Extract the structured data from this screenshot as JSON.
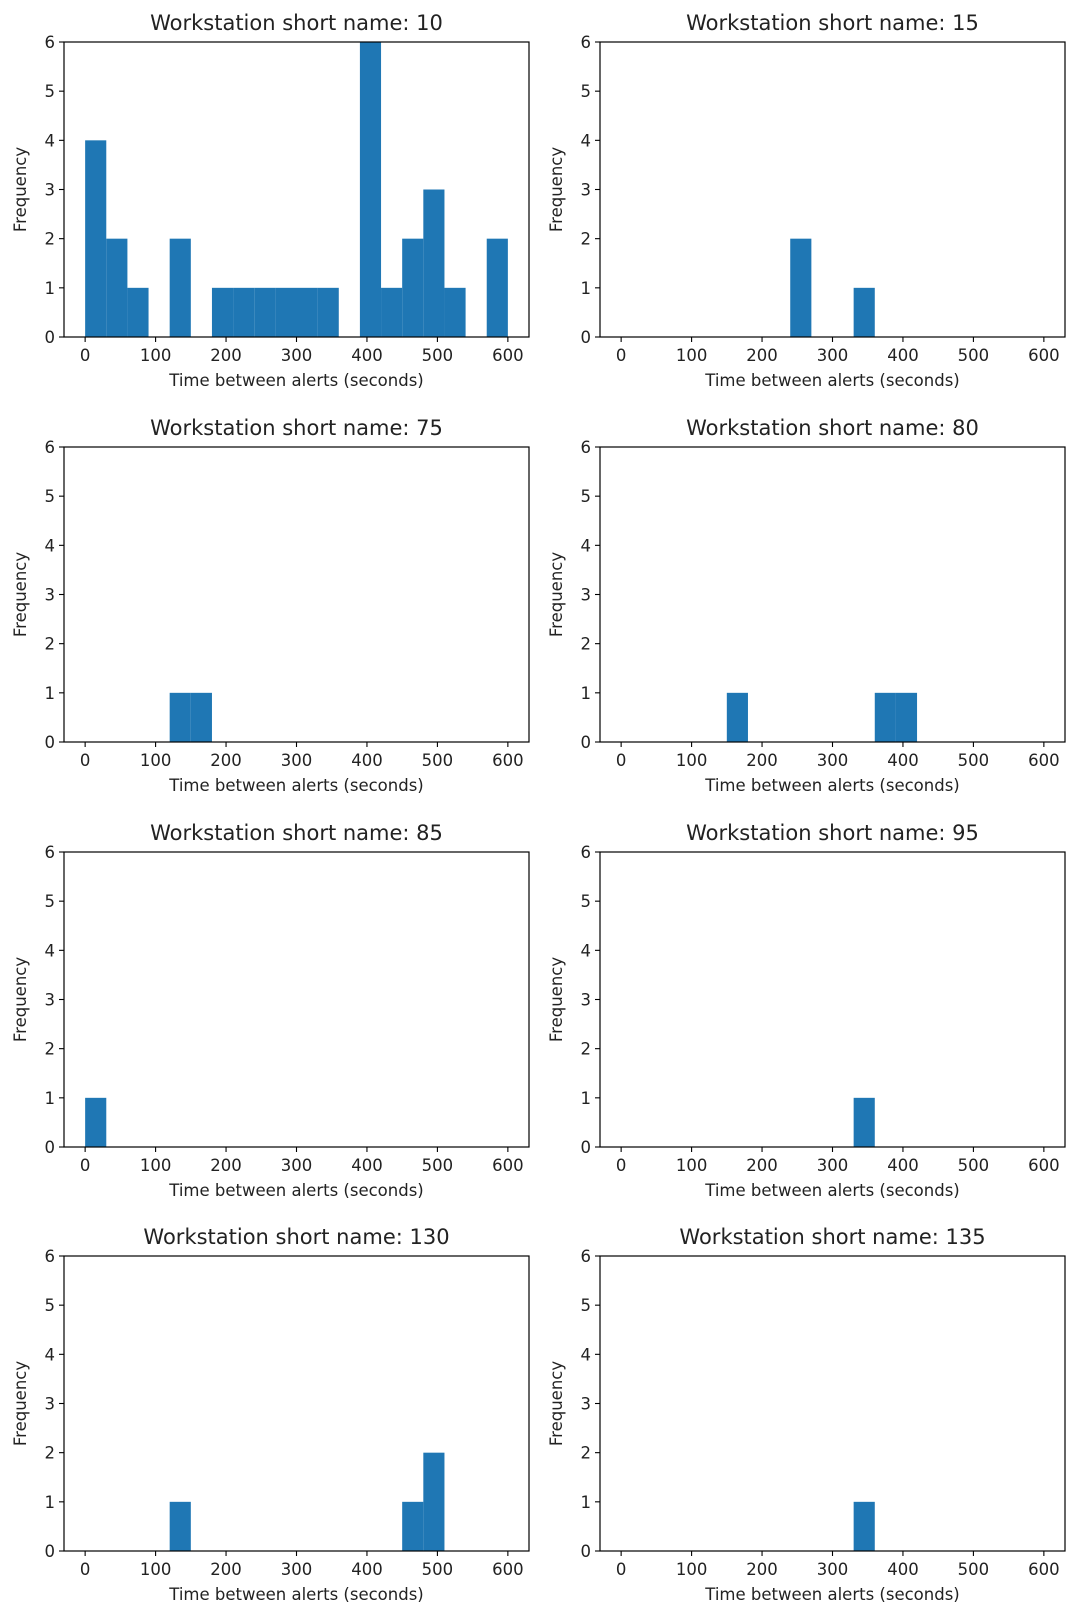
{
  "chart_data": [
    {
      "type": "bar",
      "title": "Workstation short name: 10",
      "xlabel": "Time between alerts (seconds)",
      "ylabel": "Frequency",
      "xlim": [
        -30,
        630
      ],
      "ylim": [
        0,
        6
      ],
      "xticks": [
        0,
        100,
        200,
        300,
        400,
        500,
        600
      ],
      "yticks": [
        0,
        1,
        2,
        3,
        4,
        5,
        6
      ],
      "bin_width": 30,
      "bins": [
        {
          "x": 0,
          "count": 4
        },
        {
          "x": 30,
          "count": 2
        },
        {
          "x": 60,
          "count": 1
        },
        {
          "x": 120,
          "count": 2
        },
        {
          "x": 180,
          "count": 1
        },
        {
          "x": 210,
          "count": 1
        },
        {
          "x": 240,
          "count": 1
        },
        {
          "x": 270,
          "count": 1
        },
        {
          "x": 300,
          "count": 1
        },
        {
          "x": 330,
          "count": 1
        },
        {
          "x": 390,
          "count": 6
        },
        {
          "x": 420,
          "count": 1
        },
        {
          "x": 450,
          "count": 2
        },
        {
          "x": 480,
          "count": 3
        },
        {
          "x": 510,
          "count": 1
        },
        {
          "x": 570,
          "count": 2
        }
      ],
      "grid": false,
      "color": "#1f77b4"
    },
    {
      "type": "bar",
      "title": "Workstation short name: 15",
      "xlabel": "Time between alerts (seconds)",
      "ylabel": "Frequency",
      "xlim": [
        -30,
        630
      ],
      "ylim": [
        0,
        6
      ],
      "xticks": [
        0,
        100,
        200,
        300,
        400,
        500,
        600
      ],
      "yticks": [
        0,
        1,
        2,
        3,
        4,
        5,
        6
      ],
      "bin_width": 30,
      "bins": [
        {
          "x": 240,
          "count": 2
        },
        {
          "x": 330,
          "count": 1
        }
      ],
      "grid": false,
      "color": "#1f77b4"
    },
    {
      "type": "bar",
      "title": "Workstation short name: 75",
      "xlabel": "Time between alerts (seconds)",
      "ylabel": "Frequency",
      "xlim": [
        -30,
        630
      ],
      "ylim": [
        0,
        6
      ],
      "xticks": [
        0,
        100,
        200,
        300,
        400,
        500,
        600
      ],
      "yticks": [
        0,
        1,
        2,
        3,
        4,
        5,
        6
      ],
      "bin_width": 30,
      "bins": [
        {
          "x": 120,
          "count": 1
        },
        {
          "x": 150,
          "count": 1
        }
      ],
      "grid": false,
      "color": "#1f77b4"
    },
    {
      "type": "bar",
      "title": "Workstation short name: 80",
      "xlabel": "Time between alerts (seconds)",
      "ylabel": "Frequency",
      "xlim": [
        -30,
        630
      ],
      "ylim": [
        0,
        6
      ],
      "xticks": [
        0,
        100,
        200,
        300,
        400,
        500,
        600
      ],
      "yticks": [
        0,
        1,
        2,
        3,
        4,
        5,
        6
      ],
      "bin_width": 30,
      "bins": [
        {
          "x": 150,
          "count": 1
        },
        {
          "x": 360,
          "count": 1
        },
        {
          "x": 390,
          "count": 1
        }
      ],
      "grid": false,
      "color": "#1f77b4"
    },
    {
      "type": "bar",
      "title": "Workstation short name: 85",
      "xlabel": "Time between alerts (seconds)",
      "ylabel": "Frequency",
      "xlim": [
        -30,
        630
      ],
      "ylim": [
        0,
        6
      ],
      "xticks": [
        0,
        100,
        200,
        300,
        400,
        500,
        600
      ],
      "yticks": [
        0,
        1,
        2,
        3,
        4,
        5,
        6
      ],
      "bin_width": 30,
      "bins": [
        {
          "x": 0,
          "count": 1
        }
      ],
      "grid": false,
      "color": "#1f77b4"
    },
    {
      "type": "bar",
      "title": "Workstation short name: 95",
      "xlabel": "Time between alerts (seconds)",
      "ylabel": "Frequency",
      "xlim": [
        -30,
        630
      ],
      "ylim": [
        0,
        6
      ],
      "xticks": [
        0,
        100,
        200,
        300,
        400,
        500,
        600
      ],
      "yticks": [
        0,
        1,
        2,
        3,
        4,
        5,
        6
      ],
      "bin_width": 30,
      "bins": [
        {
          "x": 330,
          "count": 1
        }
      ],
      "grid": false,
      "color": "#1f77b4"
    },
    {
      "type": "bar",
      "title": "Workstation short name: 130",
      "xlabel": "Time between alerts (seconds)",
      "ylabel": "Frequency",
      "xlim": [
        -30,
        630
      ],
      "ylim": [
        0,
        6
      ],
      "xticks": [
        0,
        100,
        200,
        300,
        400,
        500,
        600
      ],
      "yticks": [
        0,
        1,
        2,
        3,
        4,
        5,
        6
      ],
      "bin_width": 30,
      "bins": [
        {
          "x": 120,
          "count": 1
        },
        {
          "x": 450,
          "count": 1
        },
        {
          "x": 480,
          "count": 2
        }
      ],
      "grid": false,
      "color": "#1f77b4"
    },
    {
      "type": "bar",
      "title": "Workstation short name: 135",
      "xlabel": "Time between alerts (seconds)",
      "ylabel": "Frequency",
      "xlim": [
        -30,
        630
      ],
      "ylim": [
        0,
        6
      ],
      "xticks": [
        0,
        100,
        200,
        300,
        400,
        500,
        600
      ],
      "yticks": [
        0,
        1,
        2,
        3,
        4,
        5,
        6
      ],
      "bin_width": 30,
      "bins": [
        {
          "x": 330,
          "count": 1
        }
      ],
      "grid": false,
      "color": "#1f77b4"
    }
  ]
}
